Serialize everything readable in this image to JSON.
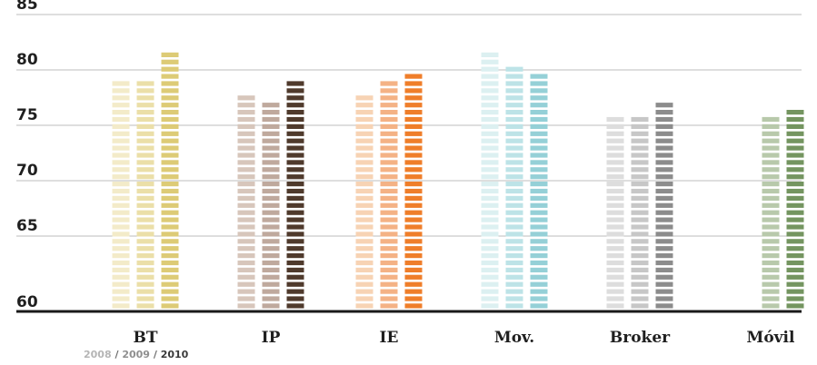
{
  "chart_data": {
    "type": "bar",
    "categories": [
      "BT",
      "IP",
      "IE",
      "Mov.",
      "Broker",
      "Móvil"
    ],
    "series": [
      {
        "name": "2008",
        "values": [
          79.0,
          77.9,
          78.0,
          82.0,
          75.9,
          null
        ]
      },
      {
        "name": "2009",
        "values": [
          79.4,
          77.6,
          79.3,
          80.4,
          76.1,
          75.8
        ]
      },
      {
        "name": "2010",
        "values": [
          81.5,
          79.3,
          79.9,
          80.0,
          77.0,
          76.6
        ]
      }
    ],
    "colors": [
      [
        "#f3ebc9",
        "#ebdfa8",
        "#ddcb76"
      ],
      [
        "#d7c6bb",
        "#bfa99d",
        "#4f3a2c"
      ],
      [
        "#f7d3b4",
        "#f4b285",
        "#ef7e2a"
      ],
      [
        "#dcf0f1",
        "#bde3e7",
        "#95d0d7"
      ],
      [
        "#dddddd",
        "#c7c7c7",
        "#8c8c8c"
      ],
      [
        null,
        "#b8c9ab",
        "#749560"
      ]
    ],
    "yticks": [
      "60",
      "65",
      "70",
      "75",
      "80",
      "85"
    ],
    "ylim": [
      58.2,
      85
    ],
    "grid": true,
    "legend_placement": "bottom-left",
    "legend": {
      "y2008": "2008",
      "y2009": "2009",
      "y2010": "2010",
      "sep": "/"
    }
  }
}
